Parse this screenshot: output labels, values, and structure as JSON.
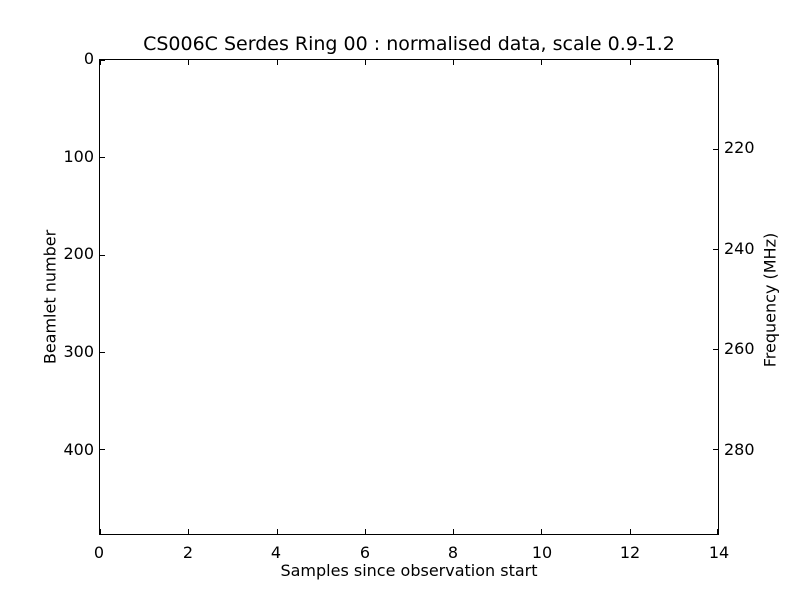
{
  "figure": {
    "background": "#ffffff",
    "foreground": "#000000"
  },
  "chart_data": {
    "type": "heatmap",
    "title": "CS006C Serdes Ring 00 : normalised data, scale 0.9-1.2",
    "xlabel": "Samples since observation start",
    "ylabel": "Beamlet number",
    "ylabel_right": "Frequency (MHz)",
    "x_axis": {
      "range": [
        0,
        14
      ],
      "ticks": [
        0,
        2,
        4,
        6,
        8,
        10,
        12,
        14
      ]
    },
    "y_axis_left": {
      "range": [
        0,
        487
      ],
      "ticks": [
        0,
        100,
        200,
        300,
        400
      ],
      "direction": "inverted-top-zero"
    },
    "y_axis_right": {
      "range": [
        202.3,
        296.9
      ],
      "ticks": [
        220,
        240,
        260,
        280
      ]
    },
    "normalisation_scale": [
      0.9,
      1.2
    ],
    "grid": false,
    "legend": null,
    "series": [],
    "plot_area_content": "blank"
  }
}
